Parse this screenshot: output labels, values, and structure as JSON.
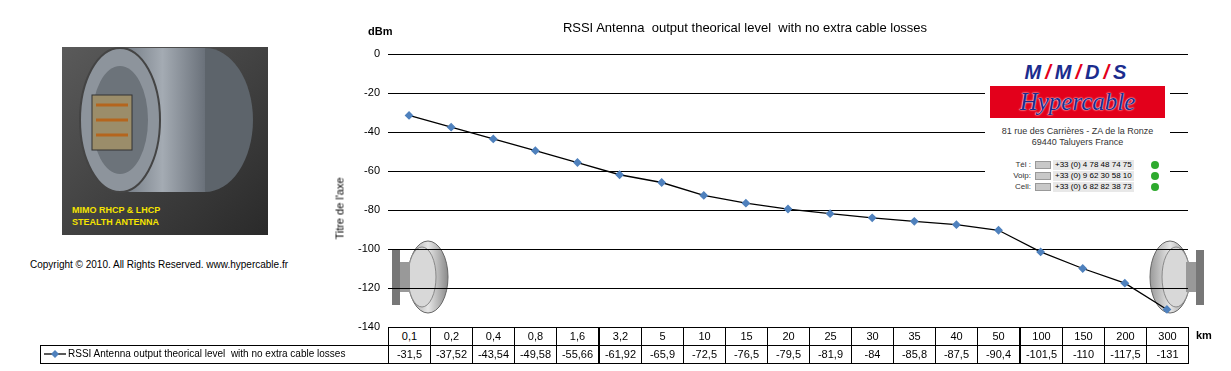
{
  "chart_data": {
    "type": "line",
    "title": "RSSI Antenna  output theorical level  with no extra cable losses",
    "y_unit": "dBm",
    "ylabel": "Titre de l'axe",
    "x_unit": "km",
    "categories": [
      "0,1",
      "0,2",
      "0,4",
      "0,8",
      "1,6",
      "3,2",
      "5",
      "10",
      "15",
      "20",
      "25",
      "30",
      "35",
      "40",
      "50",
      "100",
      "150",
      "200",
      "300"
    ],
    "series": [
      {
        "name": "RSSI Antenna output theorical level  with no extra cable losses",
        "color": "#000000",
        "marker": "diamond",
        "line_style": "solid",
        "values": [
          -31.5,
          -37.52,
          -43.54,
          -49.58,
          -55.66,
          -61.92,
          -65.9,
          -72.5,
          -76.5,
          -79.5,
          -81.9,
          -84,
          -85.8,
          -87.5,
          -90.4,
          -101.5,
          -110,
          -117.5,
          -131
        ],
        "value_labels": [
          "-31,5",
          "-37,52",
          "-43,54",
          "-49,58",
          "-55,66",
          "-61,92",
          "-65,9",
          "-72,5",
          "-76,5",
          "-79,5",
          "-81,9",
          "-84",
          "-85,8",
          "-87,5",
          "-90,4",
          "-101,5",
          "-110",
          "-117,5",
          "-131"
        ]
      }
    ],
    "ylim": [
      -140,
      0
    ],
    "yticks": [
      -140,
      -120,
      -100,
      -80,
      -60,
      -40,
      -20,
      0
    ],
    "grid": true,
    "legend": "bottom"
  },
  "photo": {
    "caption": [
      "MIMO RHCP & LHCP",
      "STEALTH ANTENNA"
    ]
  },
  "copyright": "Copyright © 2010. All Rights Reserved. www.hypercable.fr",
  "logo": {
    "brand": "M/M/D/S",
    "name": "Hypercable",
    "address": [
      "81 rue des Carrières - ZA de la Ronze",
      "69440 Taluyers France"
    ],
    "contacts": [
      {
        "label": "Tél :",
        "number": "+33 (0) 4 78 48 74 75"
      },
      {
        "label": "Voip:",
        "number": "+33 (0) 9 62 30 58 10"
      },
      {
        "label": "Cell:",
        "number": "+33 (0) 6 82 82 38 73"
      }
    ]
  }
}
